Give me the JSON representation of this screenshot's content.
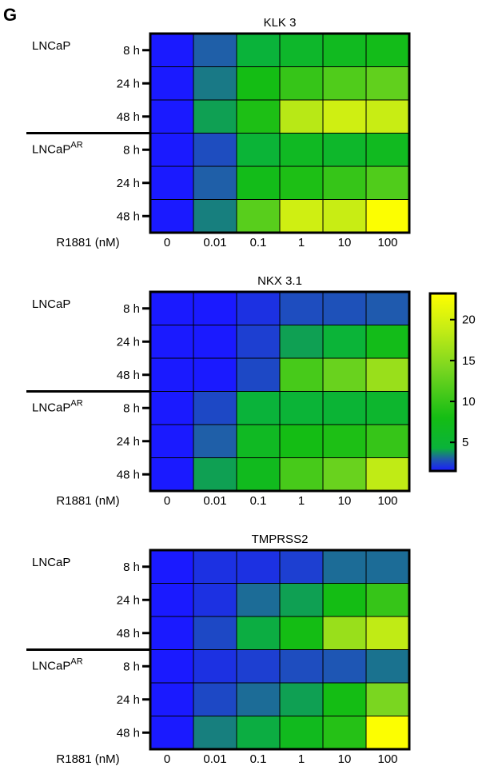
{
  "panel_label": "G",
  "x_axis_label": "R1881 (nM)",
  "row_tick_labels": [
    "8 h",
    "24 h",
    "48 h",
    "8 h",
    "24 h",
    "48 h"
  ],
  "group_labels": [
    {
      "base": "LNCaP",
      "sup": ""
    },
    {
      "base": "LNCaP",
      "sup": "AR"
    }
  ],
  "colorbar": {
    "min": 1.5,
    "max": 23.2,
    "ticks": [
      "5",
      "10",
      "15",
      "20"
    ],
    "tick_values": [
      5,
      10,
      15,
      20
    ],
    "stops": [
      {
        "v": 1.5,
        "color": "#1a1aff"
      },
      {
        "v": 3.0,
        "color": "#1f5fa8"
      },
      {
        "v": 4.3,
        "color": "#0ab33a"
      },
      {
        "v": 8.0,
        "color": "#14bd14"
      },
      {
        "v": 14.0,
        "color": "#7ad620"
      },
      {
        "v": 19.0,
        "color": "#c8ed14"
      },
      {
        "v": 23.2,
        "color": "#ffff00"
      }
    ]
  },
  "chart_data": [
    {
      "type": "heatmap",
      "title": "KLK 3",
      "categories": [
        "0",
        "0.01",
        "0.1",
        "1",
        "10",
        "100"
      ],
      "rows": [
        "LNCaP 8 h",
        "LNCaP 24 h",
        "LNCaP 48 h",
        "LNCaPAR 8 h",
        "LNCaPAR 24 h",
        "LNCaPAR 48 h"
      ],
      "values": [
        [
          1.0,
          3.0,
          4.3,
          5.8,
          6.8,
          7.5
        ],
        [
          1.0,
          3.4,
          8.0,
          10.0,
          11.5,
          12.5
        ],
        [
          1.0,
          4.0,
          8.5,
          18.0,
          19.5,
          19.0
        ],
        [
          1.0,
          2.6,
          4.6,
          6.5,
          5.8,
          6.8
        ],
        [
          1.0,
          3.0,
          7.5,
          8.5,
          10.0,
          11.5
        ],
        [
          1.0,
          3.5,
          12.0,
          19.5,
          19.0,
          23.0
        ]
      ]
    },
    {
      "type": "heatmap",
      "title": "NKX 3.1",
      "categories": [
        "0",
        "0.01",
        "0.1",
        "1",
        "10",
        "100"
      ],
      "rows": [
        "LNCaP 8 h",
        "LNCaP 24 h",
        "LNCaP 48 h",
        "LNCaPAR 8 h",
        "LNCaPAR 24 h",
        "LNCaPAR 48 h"
      ],
      "values": [
        [
          1.0,
          1.2,
          2.0,
          2.6,
          2.7,
          2.9
        ],
        [
          1.0,
          1.2,
          2.3,
          4.0,
          4.5,
          7.5
        ],
        [
          1.0,
          1.5,
          2.5,
          11.0,
          13.0,
          16.0
        ],
        [
          1.0,
          2.5,
          4.3,
          4.6,
          4.8,
          5.5
        ],
        [
          1.0,
          3.0,
          6.5,
          8.0,
          8.5,
          10.0
        ],
        [
          1.0,
          4.0,
          7.0,
          11.0,
          13.0,
          18.5
        ]
      ]
    },
    {
      "type": "heatmap",
      "title": "TMPRSS2",
      "categories": [
        "0",
        "0.01",
        "0.1",
        "1",
        "10",
        "100"
      ],
      "rows": [
        "LNCaP 8 h",
        "LNCaP 24 h",
        "LNCaP 48 h",
        "LNCaPAR 8 h",
        "LNCaPAR 24 h",
        "LNCaPAR 48 h"
      ],
      "values": [
        [
          1.0,
          2.0,
          2.0,
          2.3,
          3.2,
          3.2
        ],
        [
          1.0,
          2.0,
          3.2,
          4.0,
          8.0,
          10.0
        ],
        [
          1.0,
          2.5,
          4.2,
          8.0,
          16.0,
          18.5
        ],
        [
          1.0,
          2.0,
          2.3,
          2.6,
          2.8,
          3.3
        ],
        [
          1.0,
          2.5,
          3.2,
          4.0,
          8.0,
          14.0
        ],
        [
          1.0,
          3.5,
          4.2,
          7.0,
          9.0,
          23.0
        ]
      ]
    }
  ]
}
